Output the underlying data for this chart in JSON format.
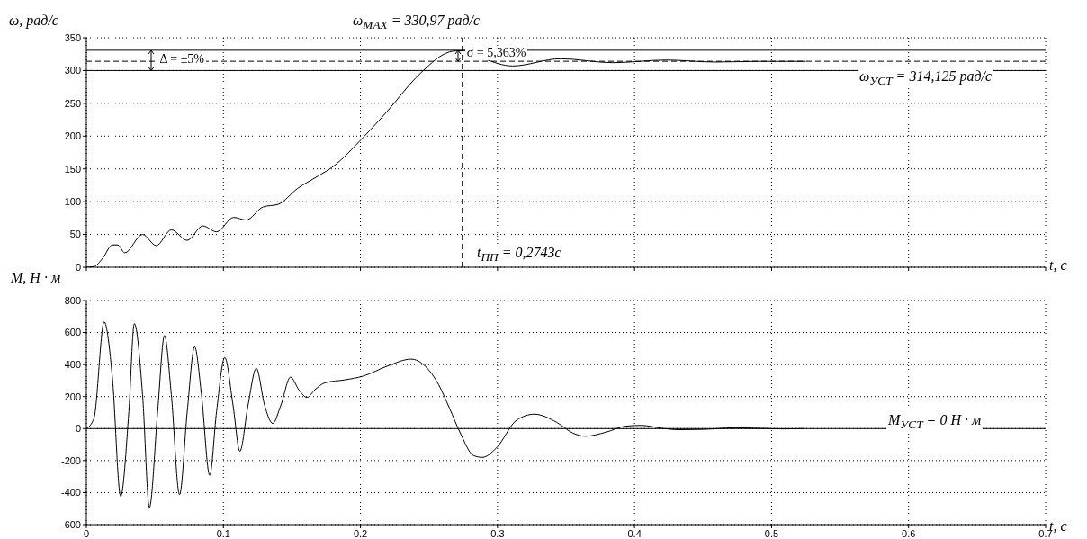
{
  "chart_data": [
    {
      "type": "line",
      "ylabel": "ω, рад/с",
      "xlabel": "t, c",
      "xlim": [
        0,
        0.7
      ],
      "xticks": [
        0,
        0.1,
        0.2,
        0.3,
        0.4,
        0.5,
        0.6,
        0.7
      ],
      "ylim": [
        0,
        350
      ],
      "yticks": [
        0,
        50,
        100,
        150,
        200,
        250,
        300,
        350
      ],
      "tick_labels": "y",
      "grid": true,
      "x": [
        0,
        0.0055,
        0.012,
        0.019,
        0.023,
        0.028,
        0.041,
        0.051,
        0.062,
        0.0735,
        0.085,
        0.095,
        0.1075,
        0.1165,
        0.129,
        0.14,
        0.154,
        0.169,
        0.179,
        0.202,
        0.22,
        0.24,
        0.25,
        0.26,
        0.27,
        0.276,
        0.29,
        0.311,
        0.346,
        0.384,
        0.423,
        0.459,
        0.49,
        0.525
      ],
      "series": [
        {
          "color": "#000000",
          "values": [
            0,
            1,
            14,
            34,
            34,
            22,
            50,
            33,
            57,
            41,
            63,
            54,
            76,
            72,
            92,
            96,
            120,
            139,
            152,
            198,
            239,
            288,
            308,
            324,
            330,
            330,
            318,
            307,
            318,
            312,
            316,
            313,
            314,
            314
          ]
        }
      ],
      "ref_lines": [
        {
          "axis": "y",
          "value": 330.97,
          "label": "ω$_{MAX}$ = 330,97 рад/с",
          "line_style": "solid"
        },
        {
          "axis": "y",
          "value": 314.125,
          "label": "ω$_{УСТ}$ = 314,125 рад/с",
          "line_style": "dashed"
        },
        {
          "axis": "y",
          "value": 300,
          "line_style": "solid"
        },
        {
          "axis": "x",
          "value": 0.2743,
          "label": "t$_{ПП}$ = 0,2743с",
          "line_style": "dashed"
        }
      ],
      "annotations": [
        {
          "text": "Δ = ±5%",
          "x": 0.047,
          "y": 315
        },
        {
          "text": "σ = 5,363%",
          "x": 0.271,
          "y": 324
        }
      ]
    },
    {
      "type": "line",
      "ylabel": "M, Н · м",
      "xlabel": "t, c",
      "xlim": [
        0,
        0.7
      ],
      "xticks": [
        0,
        0.1,
        0.2,
        0.3,
        0.4,
        0.5,
        0.6,
        0.7
      ],
      "ylim": [
        -600,
        800
      ],
      "yticks": [
        -600,
        -400,
        -200,
        0,
        200,
        400,
        600,
        800
      ],
      "grid": true,
      "x": [
        0,
        0.0055,
        0.013,
        0.019,
        0.025,
        0.031,
        0.035,
        0.041,
        0.046,
        0.052,
        0.057,
        0.062,
        0.068,
        0.0736,
        0.079,
        0.084,
        0.09,
        0.095,
        0.101,
        0.107,
        0.112,
        0.118,
        0.124,
        0.13,
        0.136,
        0.142,
        0.149,
        0.155,
        0.161,
        0.1668,
        0.174,
        0.189,
        0.202,
        0.22,
        0.237,
        0.247,
        0.257,
        0.265,
        0.2725,
        0.2826,
        0.289,
        0.299,
        0.314,
        0.327,
        0.343,
        0.355,
        0.364,
        0.379,
        0.3935,
        0.405,
        0.42,
        0.432,
        0.45,
        0.473,
        0.491,
        0.509,
        0.523
      ],
      "series": [
        {
          "color": "#000000",
          "values": [
            0,
            63,
            667,
            317,
            -423,
            106,
            656,
            212,
            -493,
            106,
            582,
            212,
            -413,
            106,
            512,
            212,
            -292,
            106,
            444,
            148,
            -142,
            148,
            377,
            148,
            32,
            148,
            322,
            243,
            195,
            243,
            286,
            305,
            328,
            392,
            434,
            392,
            275,
            127,
            -21,
            -169,
            -180,
            -123,
            53,
            90,
            40,
            -28,
            -48,
            -23,
            15,
            20,
            2,
            -7,
            -5,
            5,
            2,
            -2,
            0
          ]
        }
      ],
      "ref_lines": [
        {
          "axis": "y",
          "value": 0,
          "label": "M$_{УСТ}$ = 0 Н · м",
          "line_style": "solid"
        }
      ]
    }
  ]
}
